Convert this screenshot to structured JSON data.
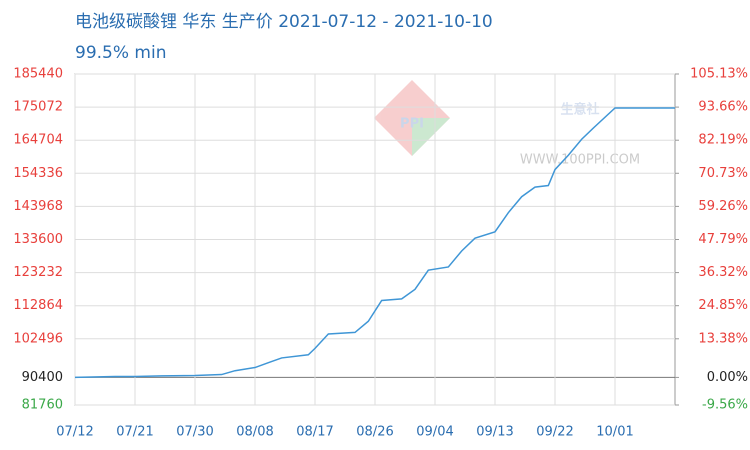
{
  "chart_data": {
    "type": "line",
    "title": "电池级碳酸锂 华东 生产价 2021-07-12 - 2021-10-10",
    "subtitle": "99.5% min",
    "watermark": "生意社",
    "watermark_url": "WWW.100PPI.COM",
    "series": [
      {
        "color": "#3f96d6",
        "x": [
          "07/12",
          "07/18",
          "07/21",
          "07/25",
          "07/30",
          "08/03",
          "08/05",
          "08/08",
          "08/10",
          "08/12",
          "08/16",
          "08/17",
          "08/19",
          "08/23",
          "08/25",
          "08/27",
          "08/30",
          "09/01",
          "09/03",
          "09/06",
          "09/08",
          "09/10",
          "09/13",
          "09/15",
          "09/17",
          "09/19",
          "09/21",
          "09/22",
          "09/24",
          "09/26",
          "09/28",
          "10/01",
          "10/10"
        ],
        "values": [
          90400,
          90700,
          90700,
          90900,
          91000,
          91300,
          92500,
          93500,
          95000,
          96500,
          97500,
          99500,
          104000,
          104500,
          108000,
          114500,
          115000,
          118000,
          124000,
          125000,
          130000,
          134000,
          136000,
          142000,
          147000,
          150000,
          150500,
          155500,
          160000,
          165000,
          169000,
          174800,
          174800
        ]
      }
    ],
    "xlim": [
      "07/12",
      "10/10"
    ],
    "xticks": [
      "07/12",
      "07/21",
      "07/30",
      "08/08",
      "08/17",
      "08/26",
      "09/04",
      "09/13",
      "09/22",
      "10/01"
    ],
    "ylim": [
      81760,
      185440
    ],
    "yticks": [
      185440,
      175072,
      164704,
      154336,
      143968,
      133600,
      123232,
      112864,
      102496,
      90400,
      81760
    ],
    "y2lim": [
      -9.56,
      105.13
    ],
    "y2ticks": [
      {
        "value": 105.13,
        "label": "105.13%"
      },
      {
        "value": 93.66,
        "label": "93.66%"
      },
      {
        "value": 82.19,
        "label": "82.19%"
      },
      {
        "value": 70.73,
        "label": "70.73%"
      },
      {
        "value": 59.26,
        "label": "59.26%"
      },
      {
        "value": 47.79,
        "label": "47.79%"
      },
      {
        "value": 36.32,
        "label": "36.32%"
      },
      {
        "value": 24.85,
        "label": "24.85%"
      },
      {
        "value": 13.38,
        "label": "13.38%"
      },
      {
        "value": 0,
        "label": "0.00%"
      },
      {
        "value": -9.56,
        "label": "-9.56%"
      }
    ],
    "grid": true,
    "tick_colors": {
      "up": "#e8403c",
      "flat": "#222222",
      "down": "#3aa848",
      "x": "#2a6db0"
    }
  }
}
